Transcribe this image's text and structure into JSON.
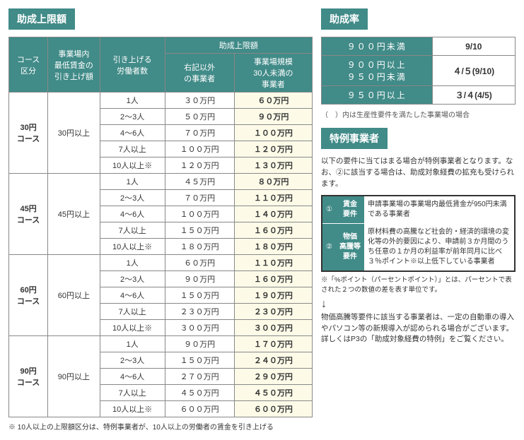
{
  "left": {
    "title": "助成上限額",
    "headers": {
      "course": "コース\n区分",
      "min_wage": "事業場内\n最低賃金の\n引き上げ額",
      "workers": "引き上げる\n労働者数",
      "limit": "助成上限額",
      "other": "右記以外\nの事業者",
      "small": "事業場規模\n30人未満の\n事業者"
    },
    "courses": [
      {
        "name": "30円\nコース",
        "min": "30円以上",
        "rows": [
          {
            "w": "1人",
            "o": "３０万円",
            "s": "６０万円"
          },
          {
            "w": "2～3人",
            "o": "５０万円",
            "s": "９０万円"
          },
          {
            "w": "4～6人",
            "o": "７０万円",
            "s": "１００万円"
          },
          {
            "w": "7人以上",
            "o": "１００万円",
            "s": "１２０万円"
          },
          {
            "w": "10人以上※",
            "o": "１２０万円",
            "s": "１３０万円"
          }
        ]
      },
      {
        "name": "45円\nコース",
        "min": "45円以上",
        "rows": [
          {
            "w": "1人",
            "o": "４５万円",
            "s": "８０万円"
          },
          {
            "w": "2～3人",
            "o": "７０万円",
            "s": "１１０万円"
          },
          {
            "w": "4～6人",
            "o": "１００万円",
            "s": "１４０万円"
          },
          {
            "w": "7人以上",
            "o": "１５０万円",
            "s": "１６０万円"
          },
          {
            "w": "10人以上※",
            "o": "１８０万円",
            "s": "１８０万円"
          }
        ]
      },
      {
        "name": "60円\nコース",
        "min": "60円以上",
        "rows": [
          {
            "w": "1人",
            "o": "６０万円",
            "s": "１１０万円"
          },
          {
            "w": "2～3人",
            "o": "９０万円",
            "s": "１６０万円"
          },
          {
            "w": "4～6人",
            "o": "１５０万円",
            "s": "１９０万円"
          },
          {
            "w": "7人以上",
            "o": "２３０万円",
            "s": "２３０万円"
          },
          {
            "w": "10人以上※",
            "o": "３００万円",
            "s": "３００万円"
          }
        ]
      },
      {
        "name": "90円\nコース",
        "min": "90円以上",
        "rows": [
          {
            "w": "1人",
            "o": "９０万円",
            "s": "１７０万円"
          },
          {
            "w": "2～3人",
            "o": "１５０万円",
            "s": "２４０万円"
          },
          {
            "w": "4～6人",
            "o": "２７０万円",
            "s": "２９０万円"
          },
          {
            "w": "7人以上",
            "o": "４５０万円",
            "s": "４５０万円"
          },
          {
            "w": "10人以上※",
            "o": "６００万円",
            "s": "６００万円"
          }
        ]
      }
    ],
    "footnote": "※ 10人以上の上限額区分は、特例事業者が、10人以上の労働者の賃金を引き上げる"
  },
  "right": {
    "rate_title": "助成率",
    "rates": [
      {
        "range": "９００円未満",
        "rate": "9/10"
      },
      {
        "range": "９００円以上\n９５０円未満",
        "rate": "４/５(9/10)"
      },
      {
        "range": "９５０円以上",
        "rate": "３/４(4/5)"
      }
    ],
    "rate_note": "（　）内は生産性要件を満たした事業場の場合",
    "special_title": "特例事業者",
    "special_desc": "以下の要件に当てはまる場合が特例事業者となります。なお、②に該当する場合は、助成対象経費の拡充も受けられます。",
    "requirements": [
      {
        "num": "①",
        "label": "賃金\n要件",
        "text": "申請事業場の事業場内最低賃金が950円未満である事業者"
      },
      {
        "num": "②",
        "label": "物価\n高騰等\n要件",
        "text": "原材料費の高騰など社会的・経済的環境の変化等の外的要因により、申請前３か月間のうち任意の１か月の利益率が前年同月に比べ３％ポイント※以上低下している事業者"
      }
    ],
    "point_note": "※「%ポイント（パーセントポイント）」とは、パーセントで表された２つの数値の差を表す単位です。",
    "bottom": "物価高騰等要件に該当する事業者は、一定の自動車の導入やパソコン等の新規導入が認められる場合がございます。詳しくはP3の「助成対象経費の特例」をご覧ください。"
  }
}
